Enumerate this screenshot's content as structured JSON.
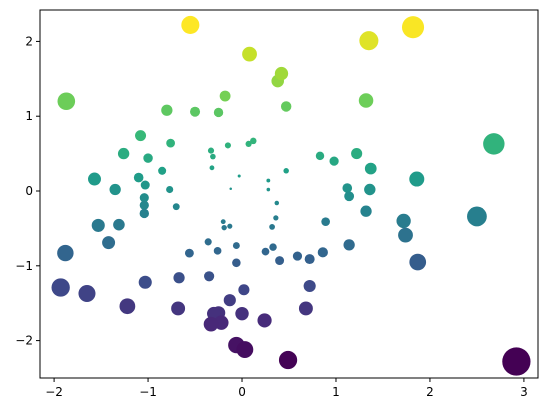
{
  "chart_data": {
    "type": "scatter",
    "title": "",
    "xlabel": "",
    "ylabel": "",
    "xlim": [
      -2.15,
      3.15
    ],
    "ylim": [
      -2.5,
      2.42
    ],
    "xticks": [
      -2,
      -1,
      0,
      1,
      2,
      3
    ],
    "xtick_labels": [
      "−2",
      "−1",
      "0",
      "1",
      "2",
      "3"
    ],
    "yticks": [
      -2,
      -1,
      0,
      1,
      2
    ],
    "ytick_labels": [
      "−2",
      "−1",
      "0",
      "1",
      "2"
    ],
    "grid": false,
    "legend": "none",
    "colormap": "viridis",
    "color_encodes": "y",
    "size_encodes": "distance from origin",
    "points": [
      {
        "x": -0.55,
        "y": 2.22
      },
      {
        "x": 0.08,
        "y": 1.83
      },
      {
        "x": 1.35,
        "y": 2.01
      },
      {
        "x": 1.82,
        "y": 2.19
      },
      {
        "x": 0.42,
        "y": 1.57
      },
      {
        "x": 0.38,
        "y": 1.47
      },
      {
        "x": -1.87,
        "y": 1.2
      },
      {
        "x": -0.8,
        "y": 1.08
      },
      {
        "x": -0.5,
        "y": 1.06
      },
      {
        "x": -0.25,
        "y": 1.05
      },
      {
        "x": -0.18,
        "y": 1.27
      },
      {
        "x": 0.47,
        "y": 1.13
      },
      {
        "x": 1.32,
        "y": 1.21
      },
      {
        "x": -1.08,
        "y": 0.74
      },
      {
        "x": -0.76,
        "y": 0.64
      },
      {
        "x": -1.26,
        "y": 0.5
      },
      {
        "x": -1.0,
        "y": 0.44
      },
      {
        "x": -0.85,
        "y": 0.27
      },
      {
        "x": -0.33,
        "y": 0.54
      },
      {
        "x": -0.31,
        "y": 0.46
      },
      {
        "x": -0.15,
        "y": 0.61
      },
      {
        "x": 0.07,
        "y": 0.63
      },
      {
        "x": 0.12,
        "y": 0.67
      },
      {
        "x": -0.03,
        "y": 0.2
      },
      {
        "x": -0.32,
        "y": 0.31
      },
      {
        "x": 2.68,
        "y": 0.63
      },
      {
        "x": 1.22,
        "y": 0.5
      },
      {
        "x": 0.83,
        "y": 0.47
      },
      {
        "x": 0.98,
        "y": 0.4
      },
      {
        "x": 1.37,
        "y": 0.3
      },
      {
        "x": 1.86,
        "y": 0.16
      },
      {
        "x": -1.57,
        "y": 0.16
      },
      {
        "x": -1.35,
        "y": 0.02
      },
      {
        "x": -1.1,
        "y": 0.18
      },
      {
        "x": -1.03,
        "y": 0.08
      },
      {
        "x": -0.77,
        "y": 0.02
      },
      {
        "x": -0.12,
        "y": 0.03
      },
      {
        "x": 0.28,
        "y": 0.14
      },
      {
        "x": 0.47,
        "y": 0.27
      },
      {
        "x": 0.28,
        "y": 0.02
      },
      {
        "x": 1.12,
        "y": 0.04
      },
      {
        "x": 1.36,
        "y": 0.02
      },
      {
        "x": 1.14,
        "y": -0.07
      },
      {
        "x": -1.04,
        "y": -0.09
      },
      {
        "x": -1.04,
        "y": -0.19
      },
      {
        "x": -1.04,
        "y": -0.3
      },
      {
        "x": -0.7,
        "y": -0.21
      },
      {
        "x": 0.37,
        "y": -0.16
      },
      {
        "x": 0.36,
        "y": -0.36
      },
      {
        "x": 1.32,
        "y": -0.27
      },
      {
        "x": 2.5,
        "y": -0.34
      },
      {
        "x": -1.53,
        "y": -0.46
      },
      {
        "x": -1.31,
        "y": -0.45
      },
      {
        "x": -0.2,
        "y": -0.41
      },
      {
        "x": -0.13,
        "y": -0.47
      },
      {
        "x": -0.19,
        "y": -0.49
      },
      {
        "x": 0.32,
        "y": -0.48
      },
      {
        "x": 0.89,
        "y": -0.41
      },
      {
        "x": 1.72,
        "y": -0.4
      },
      {
        "x": 1.74,
        "y": -0.59
      },
      {
        "x": -1.88,
        "y": -0.83
      },
      {
        "x": -1.42,
        "y": -0.69
      },
      {
        "x": -0.56,
        "y": -0.83
      },
      {
        "x": -0.36,
        "y": -0.68
      },
      {
        "x": -0.26,
        "y": -0.8
      },
      {
        "x": -0.06,
        "y": -0.73
      },
      {
        "x": 0.33,
        "y": -0.75
      },
      {
        "x": 0.25,
        "y": -0.81
      },
      {
        "x": 0.4,
        "y": -0.93
      },
      {
        "x": 0.59,
        "y": -0.87
      },
      {
        "x": 0.72,
        "y": -0.91
      },
      {
        "x": 0.86,
        "y": -0.82
      },
      {
        "x": 1.14,
        "y": -0.72
      },
      {
        "x": 1.87,
        "y": -0.95
      },
      {
        "x": -0.06,
        "y": -0.96
      },
      {
        "x": -0.67,
        "y": -1.16
      },
      {
        "x": -0.35,
        "y": -1.14
      },
      {
        "x": -1.03,
        "y": -1.22
      },
      {
        "x": -1.93,
        "y": -1.29
      },
      {
        "x": -1.65,
        "y": -1.37
      },
      {
        "x": 0.72,
        "y": -1.27
      },
      {
        "x": 0.02,
        "y": -1.32
      },
      {
        "x": -0.13,
        "y": -1.46
      },
      {
        "x": -1.22,
        "y": -1.54
      },
      {
        "x": -0.68,
        "y": -1.57
      },
      {
        "x": 0.68,
        "y": -1.57
      },
      {
        "x": -0.3,
        "y": -1.64
      },
      {
        "x": -0.25,
        "y": -1.63
      },
      {
        "x": 0.0,
        "y": -1.64
      },
      {
        "x": -0.33,
        "y": -1.78
      },
      {
        "x": -0.22,
        "y": -1.76
      },
      {
        "x": 0.24,
        "y": -1.73
      },
      {
        "x": -0.06,
        "y": -2.06
      },
      {
        "x": 0.03,
        "y": -2.12
      },
      {
        "x": 0.49,
        "y": -2.26
      },
      {
        "x": 2.92,
        "y": -2.28
      }
    ]
  }
}
